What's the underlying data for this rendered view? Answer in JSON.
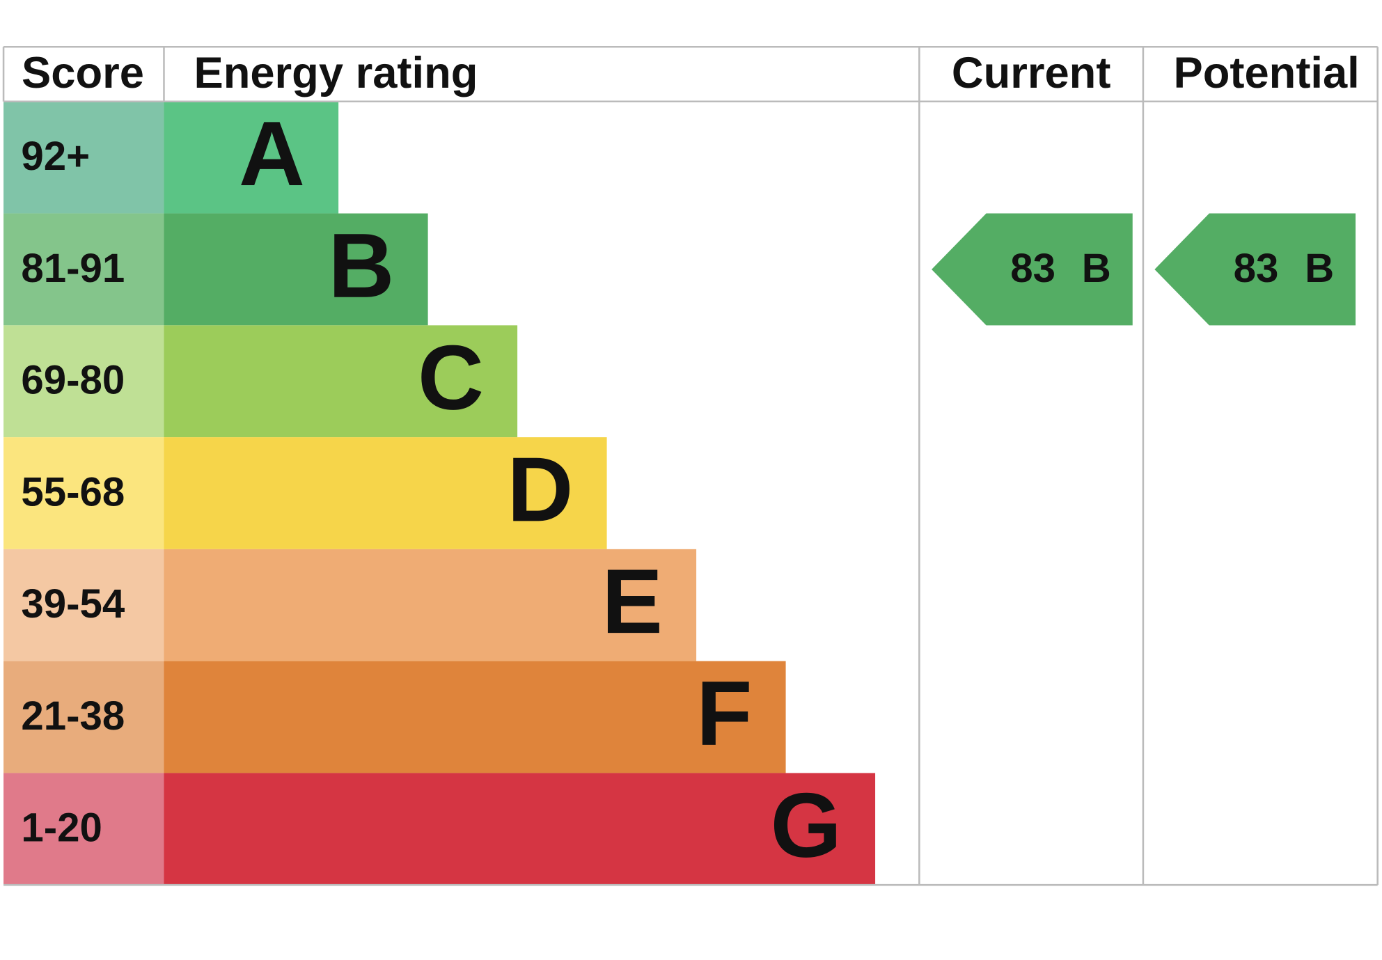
{
  "header": {
    "score": "Score",
    "energy_rating": "Energy rating",
    "current": "Current",
    "potential": "Potential"
  },
  "rows": [
    {
      "score": "92+",
      "rating": "A"
    },
    {
      "score": "81-91",
      "rating": "B"
    },
    {
      "score": "69-80",
      "rating": "C"
    },
    {
      "score": "55-68",
      "rating": "D"
    },
    {
      "score": "39-54",
      "rating": "E"
    },
    {
      "score": "21-38",
      "rating": "F"
    },
    {
      "score": "1-20",
      "rating": "G"
    }
  ],
  "current": {
    "score": 83,
    "rating": "B"
  },
  "potential": {
    "score": 83,
    "rating": "B"
  }
}
